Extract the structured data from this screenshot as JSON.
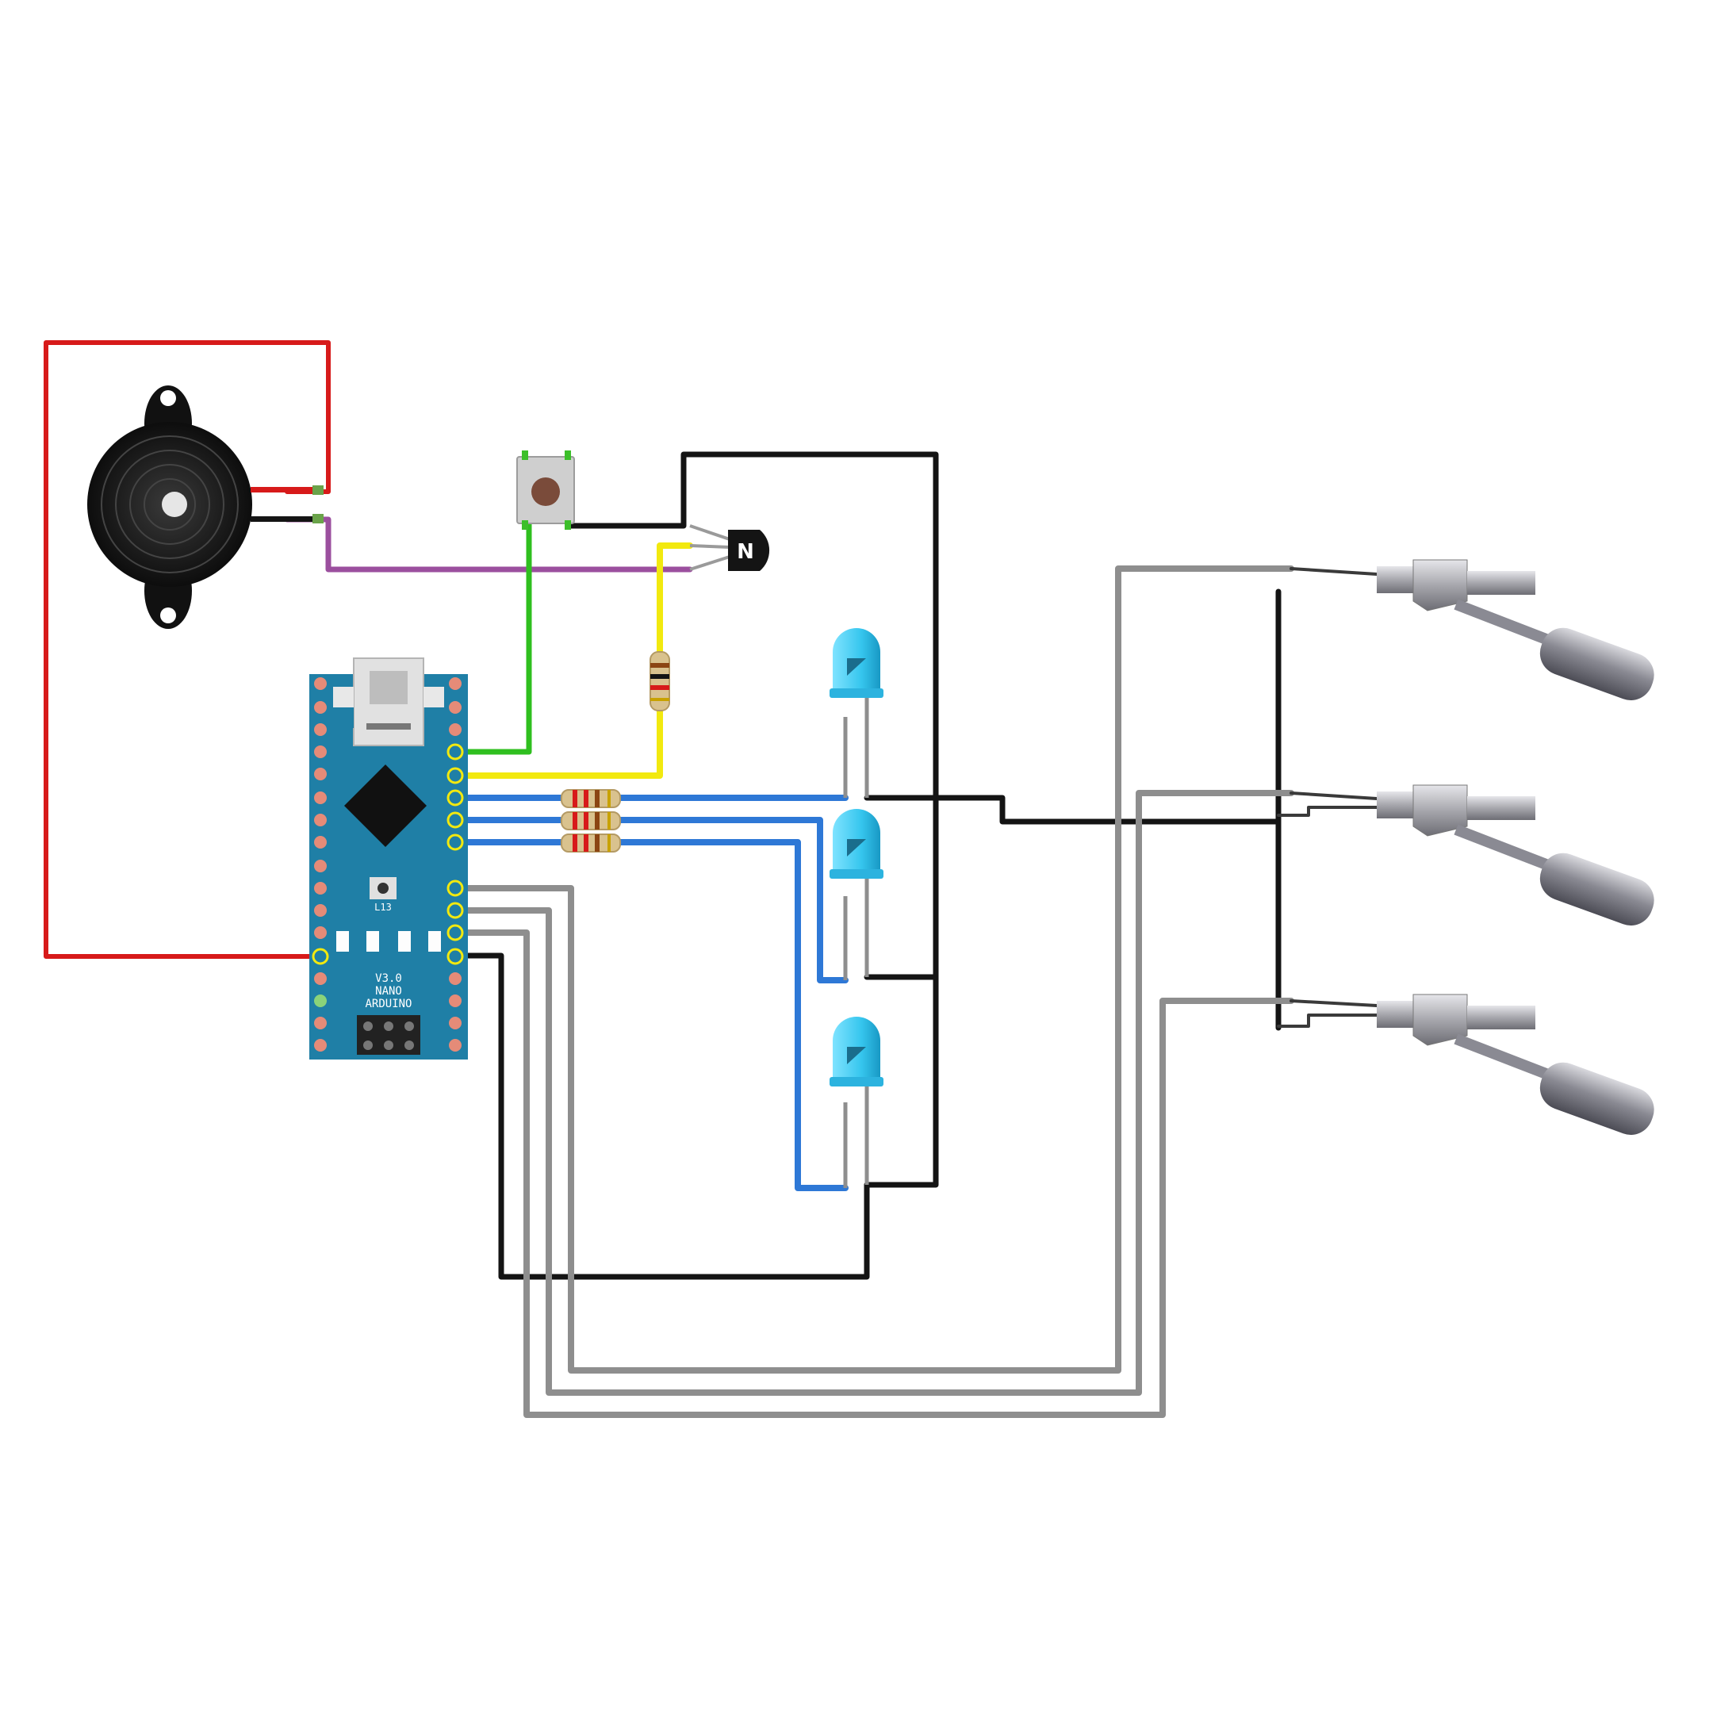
{
  "board": {
    "silkscreen_main": "ARDUINO",
    "silkscreen_model": "NANO",
    "silkscreen_version": "V3.0",
    "led_label": "L13"
  },
  "components": {
    "transistor_mark": "N"
  },
  "colors": {
    "background": "#ffffff",
    "board": "#1f7fa6",
    "wire_red": "#d71a1a",
    "wire_black": "#141414",
    "wire_purple": "#9b4f9e",
    "wire_green": "#2fbf1f",
    "wire_yellow": "#f2e90f",
    "wire_blue": "#2e78d6",
    "wire_gray": "#8e8e8e",
    "led_body": "#38c8ef",
    "sensor_metal": "#8a8a93"
  },
  "icons": [
    "buzzer-icon",
    "push-button-icon",
    "npn-transistor-icon",
    "resistor-icon",
    "led-icon",
    "temperature-probe-icon",
    "usb-connector-icon"
  ]
}
